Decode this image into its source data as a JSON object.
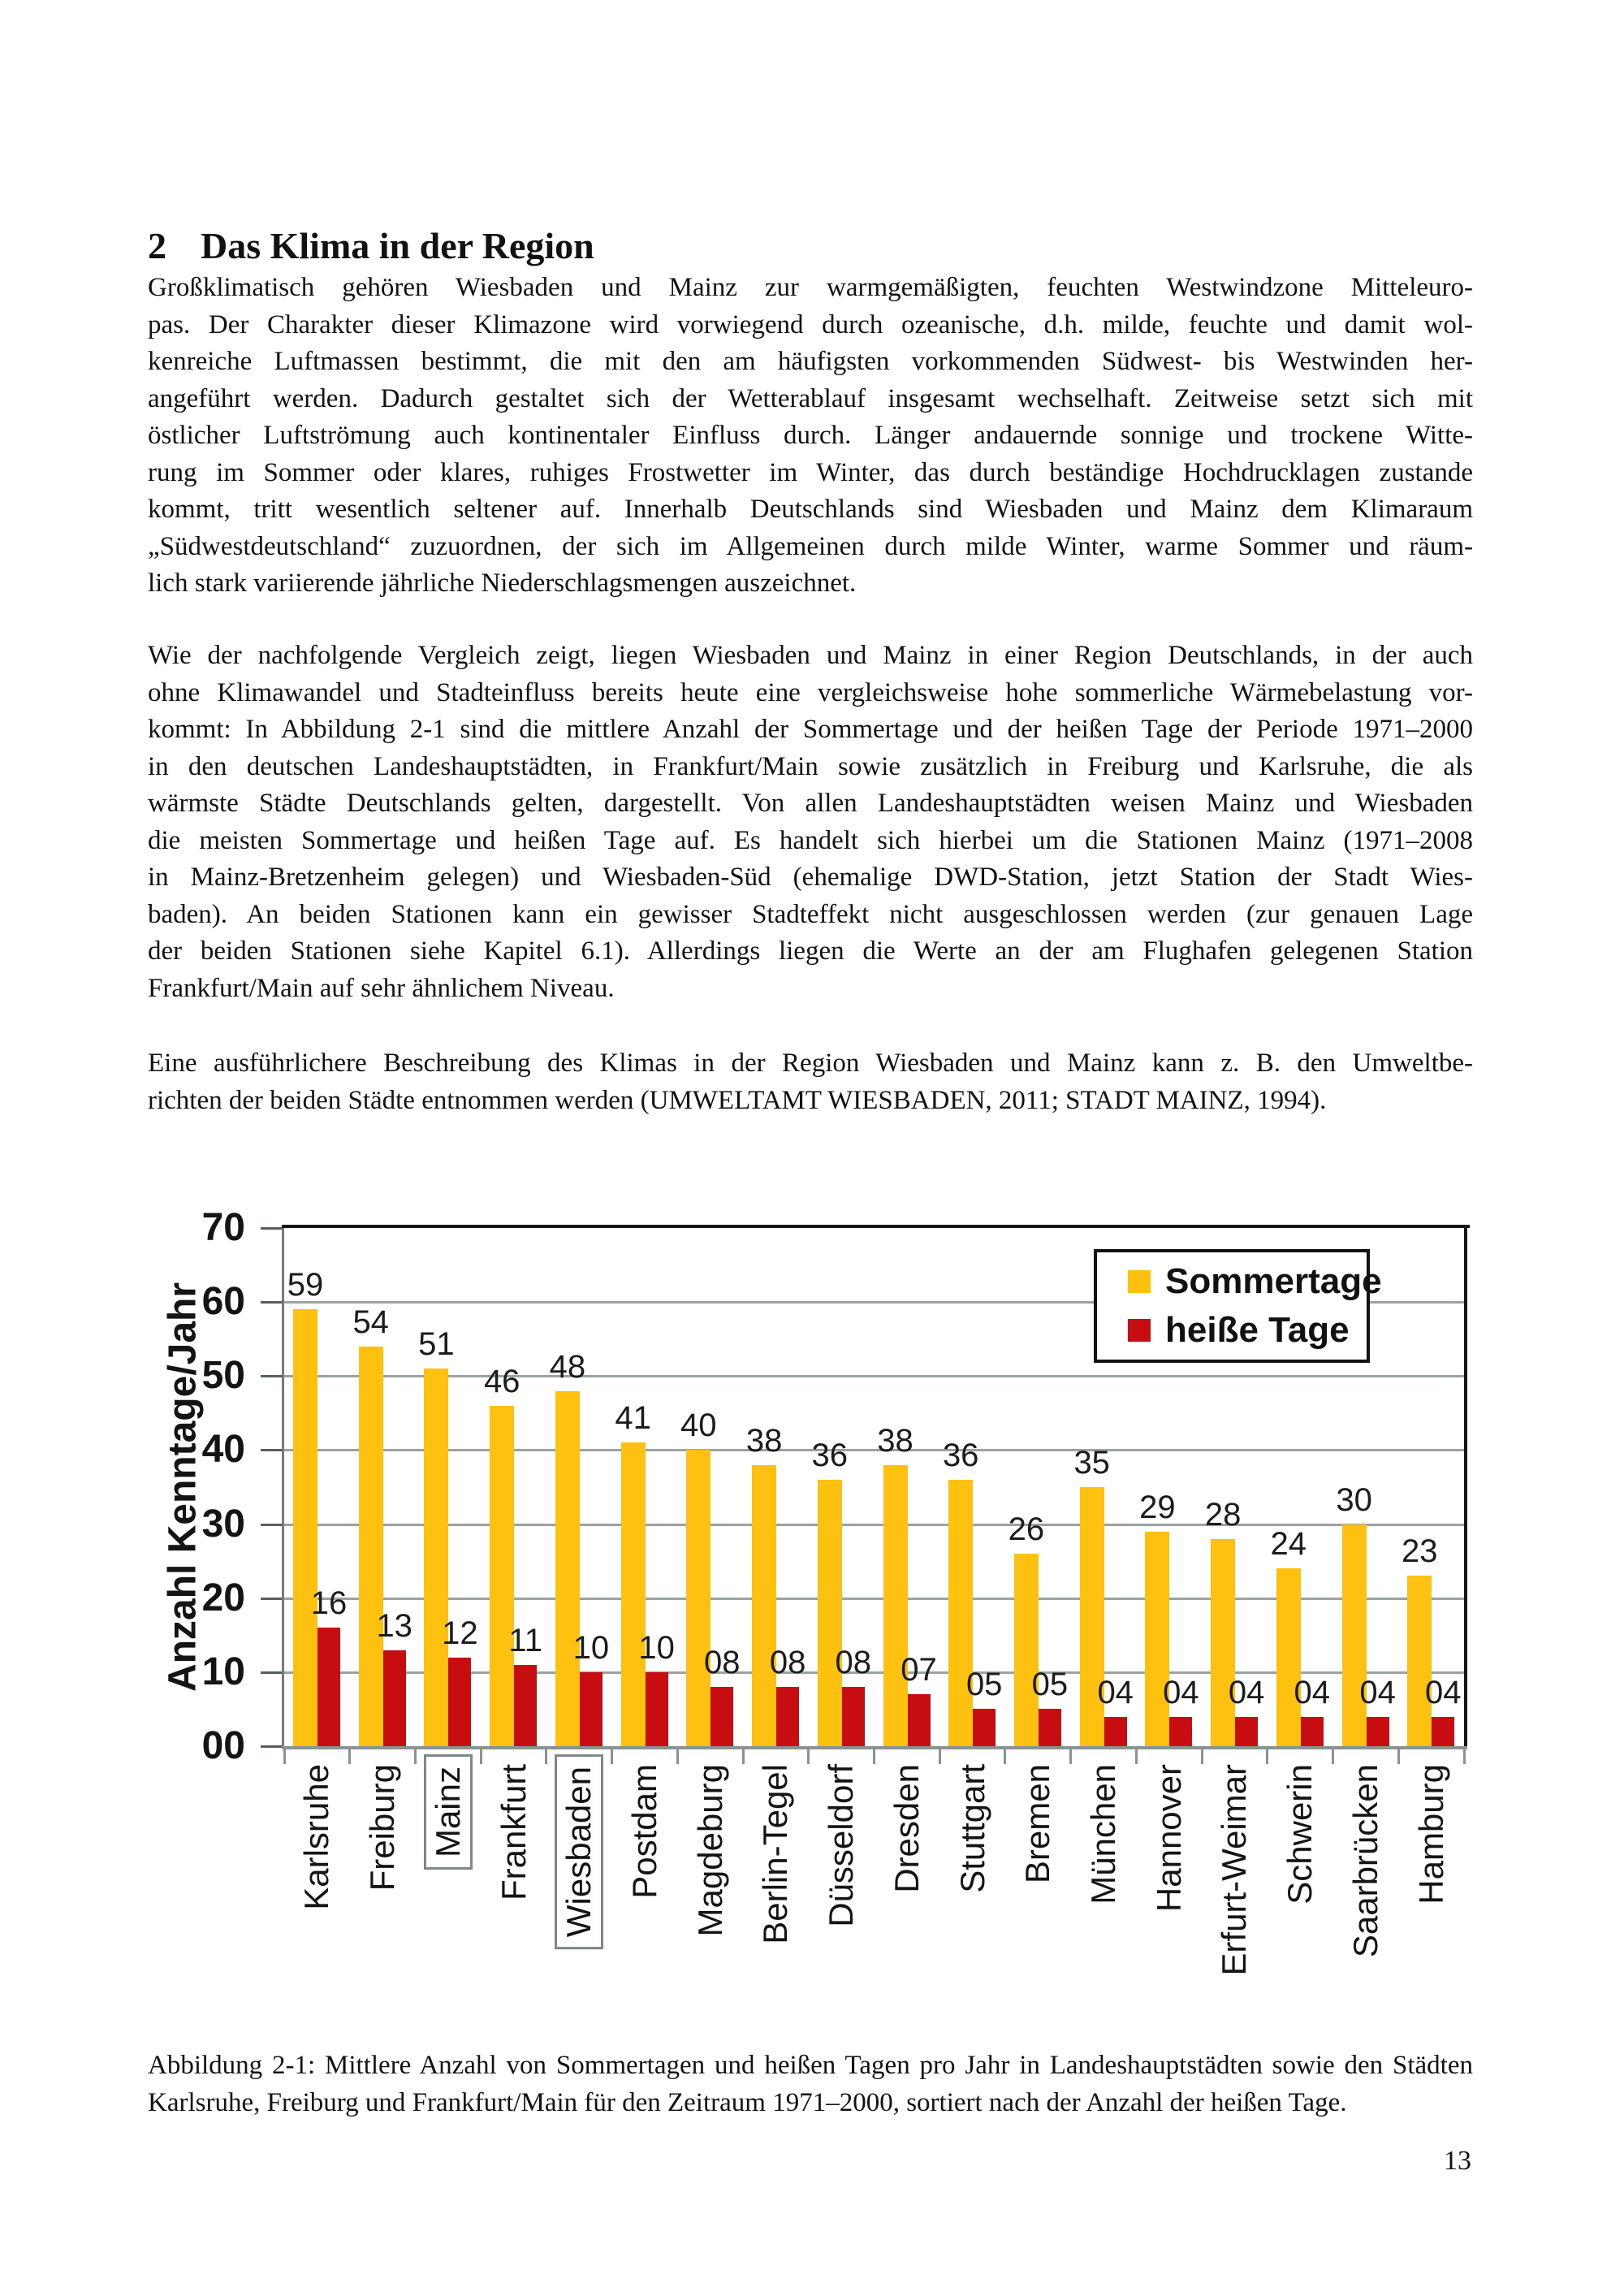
{
  "page": {
    "number": "13"
  },
  "heading": {
    "number": "2",
    "text": "Das Klima in der Region"
  },
  "paragraphs": [
    {
      "lines": [
        "Großklimatisch gehören Wiesbaden und Mainz zur warmgemäßigten, feuchten Westwindzone Mitteleuro-",
        "pas. Der Charakter dieser Klimazone wird vorwiegend durch ozeanische, d.h. milde, feuchte und damit wol-",
        "kenreiche Luftmassen bestimmt, die mit den am häufigsten vorkommenden Südwest- bis Westwinden her-",
        "angeführt werden. Dadurch gestaltet sich der Wetterablauf insgesamt wechselhaft. Zeitweise setzt sich mit",
        "östlicher Luftströmung auch kontinentaler Einfluss durch. Länger andauernde sonnige und trockene Witte-",
        "rung im Sommer oder klares, ruhiges Frostwetter im Winter, das durch beständige Hochdrucklagen zustande",
        "kommt, tritt wesentlich seltener auf. Innerhalb Deutschlands sind Wiesbaden und Mainz dem Klimaraum",
        "„Südwestdeutschland“ zuzuordnen, der sich im Allgemeinen durch milde Winter, warme Sommer und räum-",
        "lich stark variierende jährliche Niederschlagsmengen auszeichnet."
      ]
    },
    {
      "lines": [
        "Wie der nachfolgende Vergleich zeigt, liegen Wiesbaden und Mainz in einer Region Deutschlands, in der auch",
        "ohne Klimawandel und Stadteinfluss bereits heute eine vergleichsweise hohe sommerliche Wärmebelastung vor-",
        "kommt: In Abbildung 2-1 sind die mittlere Anzahl der Sommertage und der heißen Tage der Periode 1971–2000",
        "in den deutschen Landeshauptstädten, in Frankfurt/Main sowie zusätzlich in Freiburg und Karlsruhe, die als",
        "wärmste Städte Deutschlands gelten, dargestellt. Von allen Landeshauptstädten weisen Mainz und Wiesbaden",
        "die meisten Sommertage und heißen Tage auf. Es handelt sich hierbei um die Stationen Mainz (1971–2008",
        "in Mainz-Bretzenheim gelegen) und Wiesbaden-Süd (ehemalige DWD-Station, jetzt Station der Stadt Wies-",
        "baden). An beiden Stationen kann ein gewisser Stadteffekt nicht ausgeschlossen werden (zur genauen Lage",
        "der beiden Stationen siehe Kapitel 6.1). Allerdings liegen die Werte an der am Flughafen gelegenen Station",
        "Frankfurt/Main auf sehr ähnlichem Niveau."
      ]
    },
    {
      "lines": [
        "Eine ausführlichere Beschreibung des Klimas in der Region Wiesbaden und Mainz kann z. B. den Umweltbe-",
        "richten der beiden Städte entnommen werden (UMWELTAMT WIESBADEN, 2011; STADT MAINZ, 1994)."
      ]
    }
  ],
  "caption": {
    "lines": [
      "Abbildung 2-1: Mittlere Anzahl von Sommertagen und heißen Tagen pro Jahr in Landeshauptstädten sowie den Städten",
      "Karlsruhe, Freiburg und Frankfurt/Main für den Zeitraum 1971–2000, sortiert nach der Anzahl der heißen Tage."
    ]
  },
  "chart_data": {
    "type": "bar",
    "title": "",
    "xlabel": "",
    "ylabel": "Anzahl Kenntage/Jahr",
    "ylim": [
      0,
      70
    ],
    "grid": true,
    "legend_position": "top-right",
    "yticks": [
      {
        "value": 70,
        "label": "70"
      },
      {
        "value": 60,
        "label": "60"
      },
      {
        "value": 50,
        "label": "50"
      },
      {
        "value": 40,
        "label": "40"
      },
      {
        "value": 30,
        "label": "30"
      },
      {
        "value": 20,
        "label": "20"
      },
      {
        "value": 10,
        "label": "10"
      },
      {
        "value": 0,
        "label": "00"
      }
    ],
    "categories": [
      "Karlsruhe",
      "Freiburg",
      "Mainz",
      "Frankfurt",
      "Wiesbaden",
      "Postdam",
      "Magdeburg",
      "Berlin-Tegel",
      "Düsseldorf",
      "Dresden",
      "Stuttgart",
      "Bremen",
      "München",
      "Hannover",
      "Erfurt-Weimar",
      "Schwerin",
      "Saarbrücken",
      "Hamburg"
    ],
    "boxed_categories": [
      "Mainz",
      "Wiesbaden"
    ],
    "series": [
      {
        "name": "Sommertage",
        "color": "#FFC110",
        "values": [
          59,
          54,
          51,
          46,
          48,
          41,
          40,
          38,
          36,
          38,
          36,
          26,
          35,
          29,
          28,
          24,
          30,
          23
        ],
        "labels": [
          "59",
          "54",
          "51",
          "46",
          "48",
          "41",
          "40",
          "38",
          "36",
          "38",
          "36",
          "26",
          "35",
          "29",
          "28",
          "24",
          "30",
          "23"
        ]
      },
      {
        "name": "heiße Tage",
        "color": "#C70D12",
        "values": [
          16,
          13,
          12,
          11,
          10,
          10,
          8,
          8,
          8,
          7,
          5,
          5,
          4,
          4,
          4,
          4,
          4,
          4
        ],
        "labels": [
          "16",
          "13",
          "12",
          "11",
          "10",
          "10",
          "08",
          "08",
          "08",
          "07",
          "05",
          "05",
          "04",
          "04",
          "04",
          "04",
          "04",
          "04"
        ]
      }
    ],
    "colors": {
      "gridline": "#9aa2a2",
      "frame": "#161616",
      "baseline": "#8a9292",
      "axis_left": "#737b7d"
    }
  }
}
